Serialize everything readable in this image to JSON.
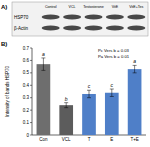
{
  "panel_a": {
    "label": "A)",
    "lanes": [
      "Control",
      "VCL",
      "Testosterone",
      "VitE",
      "VitE+Tes"
    ],
    "rows": [
      "HSP70",
      "β-Actin"
    ]
  },
  "chart_data": {
    "type": "bar",
    "panel_label": "B)",
    "y_label": "Intensity of bands HSP70",
    "categories": [
      "Con",
      "VCL",
      "T",
      "E",
      "T+E"
    ],
    "values": [
      0.57,
      0.24,
      0.33,
      0.34,
      0.53
    ],
    "errors": [
      0.05,
      0.02,
      0.03,
      0.03,
      0.03
    ],
    "significance": [
      "a",
      "b",
      "c",
      "c",
      "a"
    ],
    "colors": [
      "#6e6e6e",
      "#5c5c5c",
      "#4f7fc8",
      "#4f7fc8",
      "#4f7fc8"
    ],
    "ylim": [
      0,
      0.7
    ],
    "yticks": [
      0,
      0.1,
      0.2,
      0.3,
      0.4,
      0.5,
      0.6,
      0.7
    ],
    "annotations": [
      "Pc Vers b = 0.03",
      "Pa Vers b = 0.01"
    ]
  }
}
